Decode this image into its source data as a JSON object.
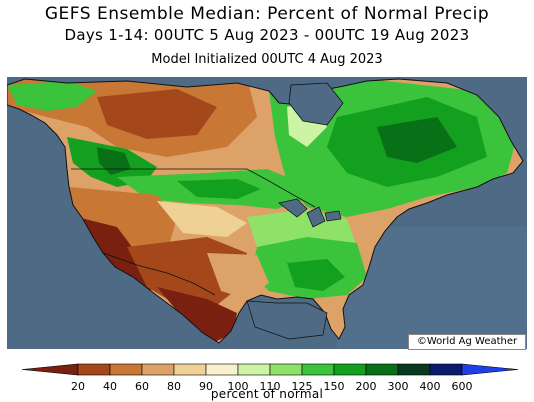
{
  "header": {
    "title": "GEFS Ensemble Median: Percent of Normal Precip",
    "subtitle": "Days 1-14: 00UTC 5 Aug 2023 - 00UTC 19 Aug 2023",
    "init": "Model Initialized 00UTC 4 Aug 2023"
  },
  "credit": "©World Ag Weather",
  "colorbar": {
    "title": "percent of normal",
    "ticks": [
      "20",
      "40",
      "60",
      "80",
      "90",
      "100",
      "110",
      "125",
      "150",
      "200",
      "300",
      "400",
      "600"
    ],
    "colors": [
      "#7a2010",
      "#a4481c",
      "#c97735",
      "#dca268",
      "#efd196",
      "#f6f0cf",
      "#cdf3a4",
      "#8ee268",
      "#3cc33c",
      "#12a01e",
      "#087016",
      "#093820",
      "#0b1a6e",
      "#1e40e6"
    ]
  },
  "map": {
    "ocean_color": "#4f6a85",
    "regions": [
      {
        "name": "canada-west",
        "category": "60-80"
      },
      {
        "name": "pacific-northwest",
        "category": "125-200"
      },
      {
        "name": "california",
        "category": "20-40"
      },
      {
        "name": "southwest",
        "category": "20-60"
      },
      {
        "name": "northern-plains",
        "category": "110-200"
      },
      {
        "name": "texas",
        "category": "40-80"
      },
      {
        "name": "great-lakes",
        "category": "110-150"
      },
      {
        "name": "southeast",
        "category": "125-200"
      },
      {
        "name": "northeast-canada",
        "category": "125-300"
      }
    ]
  }
}
